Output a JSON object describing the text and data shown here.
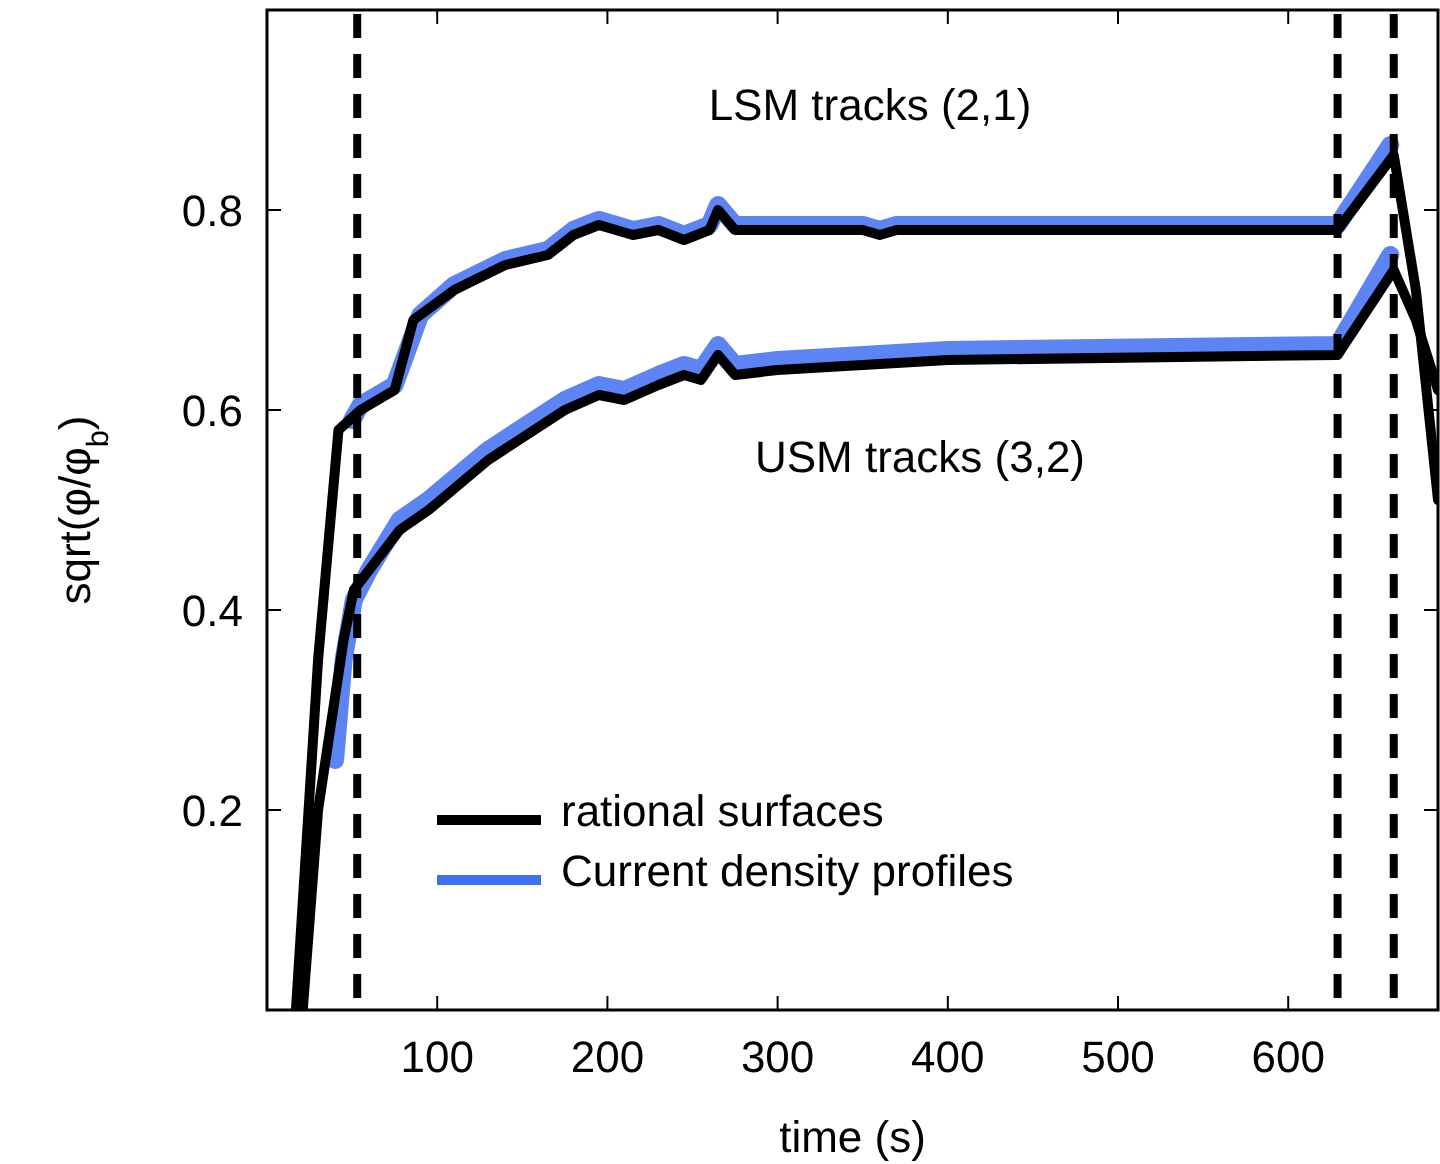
{
  "chart_data": {
    "type": "line",
    "xlabel": "time (s)",
    "ylabel": "sqrt(φ/φ$_{b}$)",
    "xlim": [
      0,
      688
    ],
    "ylim": [
      0,
      1
    ],
    "xticks": [
      100,
      200,
      300,
      400,
      500,
      600
    ],
    "yticks": [
      {
        "value": 0.2,
        "label": "0.2"
      },
      {
        "value": 0.4,
        "label": "0.4"
      },
      {
        "value": 0.6,
        "label": "0.6"
      },
      {
        "value": 0.8,
        "label": "0.8"
      }
    ],
    "grid": false,
    "legend": "bottom left",
    "marker": "none",
    "line_style": "solid",
    "series": [
      {
        "name": "Current density profiles",
        "color": "#3f6ff0",
        "x": [
          50,
          55,
          75,
          90,
          110,
          140,
          165,
          180,
          195,
          205,
          215,
          230,
          245,
          260,
          265,
          275,
          350,
          360,
          370,
          629,
          660
        ],
        "values": [
          0.59,
          0.605,
          0.625,
          0.695,
          0.725,
          0.75,
          0.76,
          0.78,
          0.79,
          0.785,
          0.78,
          0.785,
          0.775,
          0.785,
          0.805,
          0.785,
          0.785,
          0.78,
          0.785,
          0.785,
          0.865
        ]
      },
      {
        "color": "#3f6ff0",
        "x": [
          40,
          45,
          51,
          60,
          78,
          95,
          130,
          175,
          195,
          210,
          230,
          245,
          255,
          265,
          275,
          300,
          350,
          400,
          629,
          660
        ],
        "values": [
          0.25,
          0.35,
          0.41,
          0.44,
          0.49,
          0.51,
          0.56,
          0.61,
          0.625,
          0.62,
          0.635,
          0.645,
          0.64,
          0.665,
          0.645,
          0.65,
          0.655,
          0.66,
          0.665,
          0.755
        ]
      },
      {
        "name": "rational surfaces",
        "color": "#000000",
        "x": [
          17,
          30,
          42,
          55,
          75,
          86,
          110,
          140,
          165,
          180,
          195,
          205,
          215,
          230,
          245,
          260,
          265,
          275,
          350,
          360,
          370,
          629,
          662,
          675,
          688
        ],
        "values": [
          0,
          0.35,
          0.58,
          0.6,
          0.62,
          0.69,
          0.72,
          0.745,
          0.755,
          0.775,
          0.785,
          0.78,
          0.775,
          0.78,
          0.77,
          0.78,
          0.8,
          0.78,
          0.78,
          0.775,
          0.78,
          0.78,
          0.855,
          0.72,
          0.51
        ]
      },
      {
        "color": "#000000",
        "x": [
          21,
          30,
          45,
          51,
          60,
          78,
          95,
          130,
          175,
          195,
          210,
          230,
          245,
          255,
          265,
          275,
          300,
          350,
          400,
          629,
          662,
          675,
          688
        ],
        "values": [
          0,
          0.2,
          0.37,
          0.42,
          0.44,
          0.48,
          0.5,
          0.55,
          0.6,
          0.615,
          0.61,
          0.625,
          0.635,
          0.63,
          0.655,
          0.635,
          0.64,
          0.645,
          0.65,
          0.655,
          0.74,
          0.69,
          0.62
        ]
      }
    ],
    "ref_lines": [
      {
        "axis": "x",
        "value": 53,
        "color": "#000000",
        "line_style": "dashed"
      },
      {
        "axis": "x",
        "value": 629,
        "color": "#000000",
        "line_style": "dashed"
      },
      {
        "axis": "x",
        "value": 662,
        "color": "#000000",
        "line_style": "dashed"
      }
    ],
    "annotations": [
      "LSM tracks (2,1)",
      "USM tracks (3,2)"
    ]
  }
}
